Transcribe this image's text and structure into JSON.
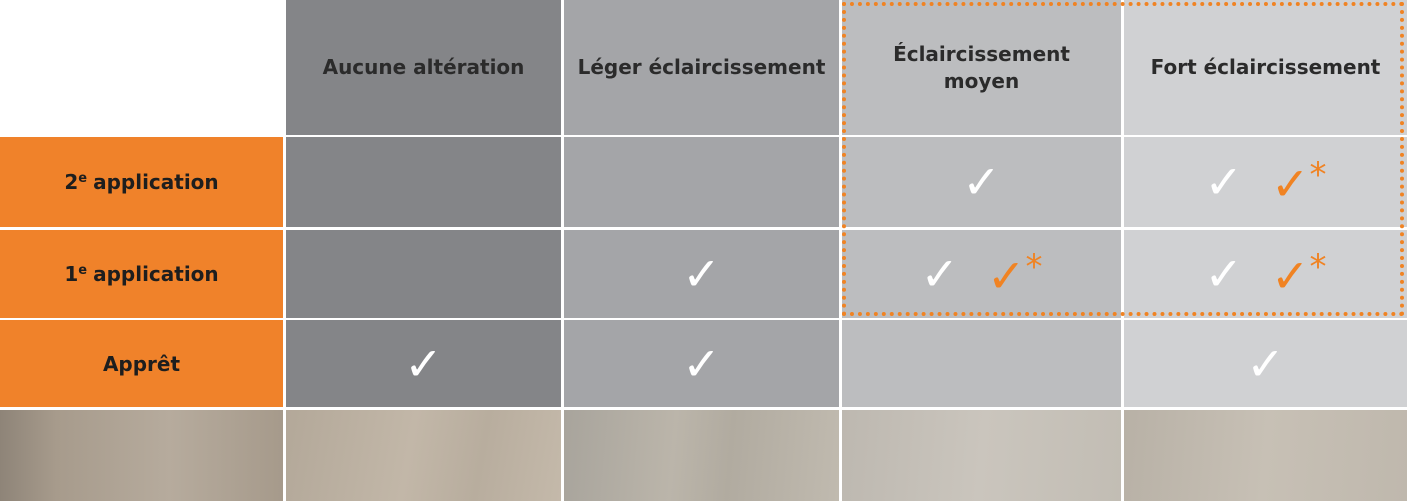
{
  "table": {
    "columns": [
      "Aucune altération",
      "Léger éclaircissement",
      "Éclaircissement moyen",
      "Fort éclaircissement"
    ],
    "rows": [
      {
        "number": "2",
        "sup": "e",
        "text": "application",
        "cells": [
          [],
          [],
          [
            {
              "mark": "✓",
              "color": "#ffffff"
            }
          ],
          [
            {
              "mark": "✓",
              "color": "#ffffff"
            },
            {
              "mark": "✓",
              "note": "*",
              "color": "#f08323"
            }
          ]
        ]
      },
      {
        "number": "1",
        "sup": "e",
        "text": "application",
        "cells": [
          [],
          [
            {
              "mark": "✓",
              "color": "#ffffff"
            }
          ],
          [
            {
              "mark": "✓",
              "color": "#ffffff"
            },
            {
              "mark": "✓",
              "note": "*",
              "color": "#f08323"
            }
          ],
          [
            {
              "mark": "✓",
              "color": "#ffffff"
            },
            {
              "mark": "✓",
              "note": "*",
              "color": "#f08323"
            }
          ]
        ]
      },
      {
        "text": "Apprêt",
        "cells": [
          [
            {
              "mark": "✓",
              "color": "#ffffff"
            }
          ],
          [
            {
              "mark": "✓",
              "color": "#ffffff"
            }
          ],
          [],
          [
            {
              "mark": "✓",
              "color": "#ffffff"
            }
          ]
        ]
      }
    ]
  }
}
